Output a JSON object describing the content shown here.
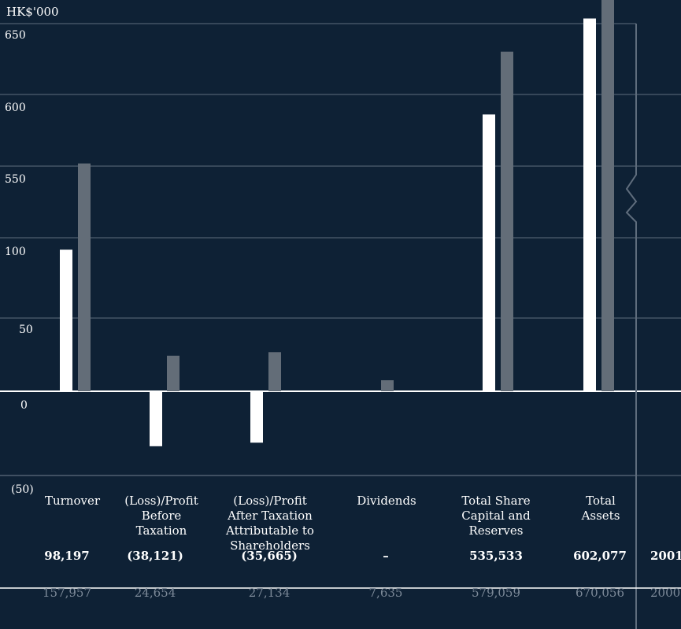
{
  "chart_data": {
    "type": "bar",
    "unit_label": "HK$'000",
    "y_ticks": [
      "650",
      "600",
      "550",
      "100",
      "50",
      "0",
      "(50)"
    ],
    "y_axis_break": true,
    "categories": [
      "Turnover",
      "(Loss)/Profit Before Taxation",
      "(Loss)/Profit After Taxation Attributable to Shareholders",
      "Dividends",
      "Total Share Capital and Reserves",
      "Total Assets"
    ],
    "category_lines": [
      [
        "Turnover"
      ],
      [
        "(Loss)/Profit",
        "Before",
        "Taxation"
      ],
      [
        "(Loss)/Profit",
        "After Taxation",
        "Attributable to",
        "Shareholders"
      ],
      [
        "Dividends"
      ],
      [
        "Total Share",
        "Capital and",
        "Reserves"
      ],
      [
        "Total",
        "Assets"
      ]
    ],
    "series": [
      {
        "name": "2001",
        "color": "#ffffff",
        "values": [
          98197,
          -38121,
          -35665,
          0,
          535533,
          602077
        ],
        "labels": [
          "98,197",
          "(38,121)",
          "(35,665)",
          "–",
          "535,533",
          "602,077"
        ]
      },
      {
        "name": "2000",
        "color": "#636d78",
        "values": [
          157957,
          24654,
          27134,
          7635,
          579059,
          670056
        ],
        "labels": [
          "157,957",
          "24,654",
          "27,134",
          "7,635",
          "579,059",
          "670,056"
        ]
      }
    ],
    "colors": {
      "background": "#0e2135",
      "grid": "#5f6d7d",
      "muted_text": "#7d8a99"
    }
  }
}
